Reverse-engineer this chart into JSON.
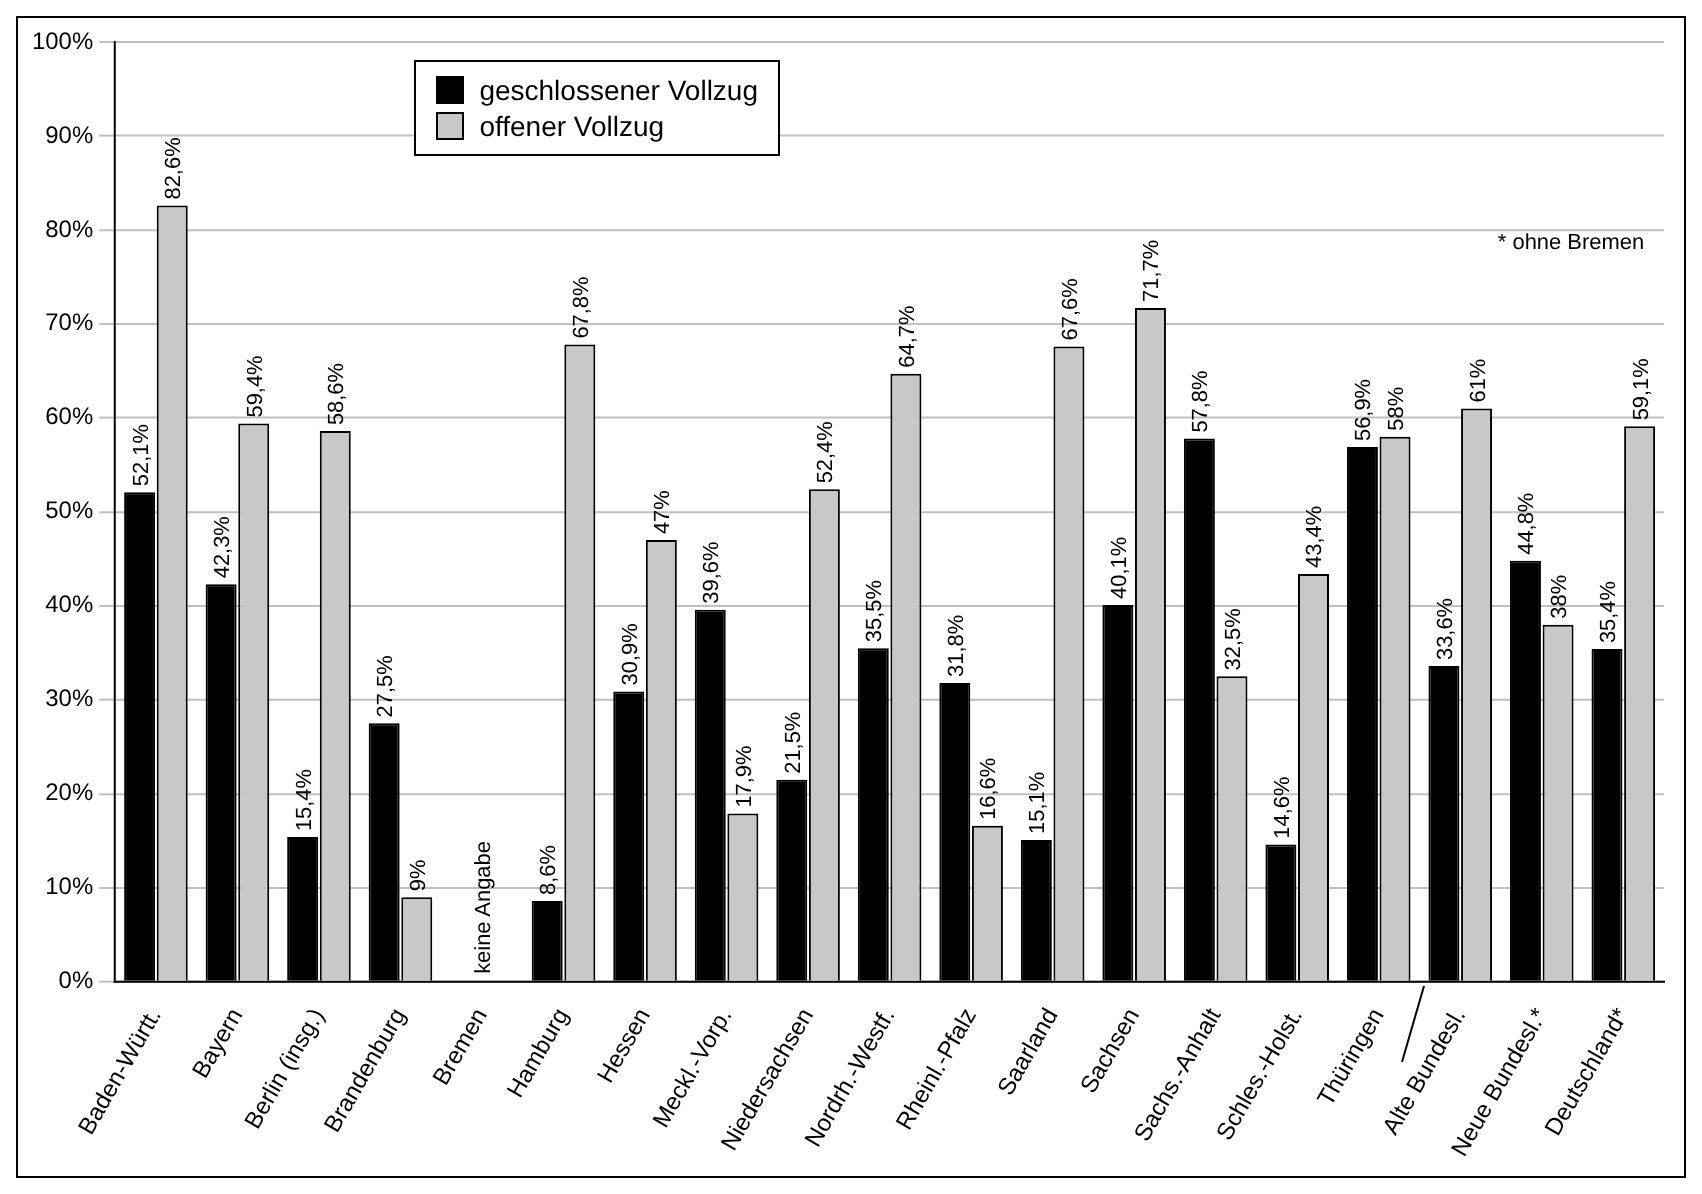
{
  "chart_data": {
    "type": "bar",
    "categories": [
      "Baden-Württ.",
      "Bayern",
      "Berlin (insg.)",
      "Brandenburg",
      "Bremen",
      "Hamburg",
      "Hessen",
      "Meckl.-Vorp.",
      "Niedersachsen",
      "Nordrh.-Westf.",
      "Rheinl.-Pfalz",
      "Saarland",
      "Sachsen",
      "Sachs.-Anhalt",
      "Schles.-Holst.",
      "Thüringen",
      "Alte Bundesl.",
      "Neue Bundesl.*",
      "Deutschland*"
    ],
    "series": [
      {
        "name": "geschlossener Vollzug",
        "color": "#000000",
        "values": [
          52.1,
          42.3,
          15.4,
          27.5,
          null,
          8.6,
          30.9,
          39.6,
          21.5,
          35.5,
          31.8,
          15.1,
          40.1,
          57.8,
          14.6,
          56.9,
          33.6,
          44.8,
          35.4
        ],
        "value_labels": [
          "52,1%",
          "42,3%",
          "15,4%",
          "27,5%",
          null,
          "8,6%",
          "30,9%",
          "39,6%",
          "21,5%",
          "35,5%",
          "31,8%",
          "15,1%",
          "40,1%",
          "57,8%",
          "14,6%",
          "56,9%",
          "33,6%",
          "44,8%",
          "35,4%"
        ]
      },
      {
        "name": "offener Vollzug",
        "color": "#c8c8c8",
        "values": [
          82.6,
          59.4,
          58.6,
          9,
          null,
          67.8,
          47,
          17.9,
          52.4,
          64.7,
          16.6,
          67.6,
          71.7,
          32.5,
          43.4,
          58,
          61,
          38,
          59.1
        ],
        "value_labels": [
          "82,6%",
          "59,4%",
          "58,6%",
          "9%",
          null,
          "67,8%",
          "47%",
          "17,9%",
          "52,4%",
          "64,7%",
          "16,6%",
          "67,6%",
          "71,7%",
          "32,5%",
          "43,4%",
          "58%",
          "61%",
          "38%",
          "59,1%"
        ]
      }
    ],
    "ylim": [
      0,
      100
    ],
    "yticks": [
      {
        "value": 0,
        "label": "0%"
      },
      {
        "value": 10,
        "label": "10%"
      },
      {
        "value": 20,
        "label": "20%"
      },
      {
        "value": 30,
        "label": "30%"
      },
      {
        "value": 40,
        "label": "40%"
      },
      {
        "value": 50,
        "label": "50%"
      },
      {
        "value": 60,
        "label": "60%"
      },
      {
        "value": 70,
        "label": "70%"
      },
      {
        "value": 80,
        "label": "80%"
      },
      {
        "value": 90,
        "label": "90%"
      },
      {
        "value": 100,
        "label": "100%"
      }
    ],
    "grid": "y",
    "legend": "top left",
    "annotations": [
      "keine Angabe",
      "* ohne Bremen"
    ]
  }
}
